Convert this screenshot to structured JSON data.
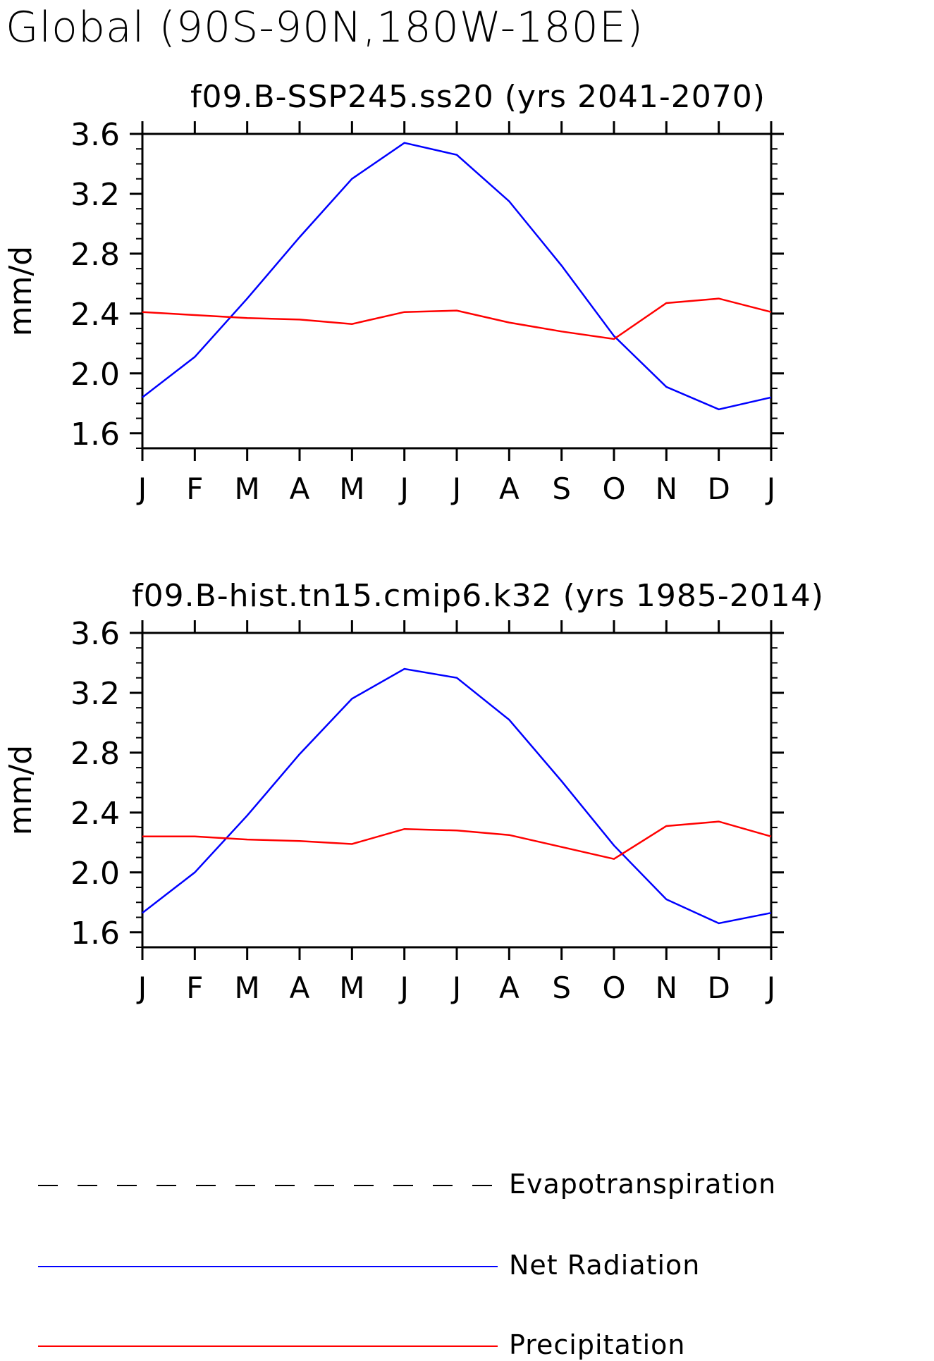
{
  "title": "Global (90S-90N,180W-180E)",
  "chart_data": [
    {
      "type": "line",
      "title": "f09.B-SSP245.ss20 (yrs 2041-2070)",
      "xlabel": "",
      "ylabel": "mm/d",
      "categories": [
        "J",
        "F",
        "M",
        "A",
        "M",
        "J",
        "J",
        "A",
        "S",
        "O",
        "N",
        "D",
        "J"
      ],
      "ylim": [
        1.5,
        3.6
      ],
      "yticks": [
        "1.6",
        "2.0",
        "2.4",
        "2.8",
        "3.2",
        "3.6"
      ],
      "series": [
        {
          "name": "Net Radiation",
          "color": "#0000ff",
          "values": [
            1.84,
            2.11,
            2.5,
            2.91,
            3.3,
            3.54,
            3.46,
            3.15,
            2.72,
            2.25,
            1.91,
            1.76,
            1.84
          ]
        },
        {
          "name": "Precipitation",
          "color": "#ff0000",
          "values": [
            2.41,
            2.39,
            2.37,
            2.36,
            2.33,
            2.41,
            2.42,
            2.34,
            2.28,
            2.23,
            2.47,
            2.5,
            2.41
          ]
        }
      ]
    },
    {
      "type": "line",
      "title": "f09.B-hist.tn15.cmip6.k32 (yrs 1985-2014)",
      "xlabel": "",
      "ylabel": "mm/d",
      "categories": [
        "J",
        "F",
        "M",
        "A",
        "M",
        "J",
        "J",
        "A",
        "S",
        "O",
        "N",
        "D",
        "J"
      ],
      "ylim": [
        1.5,
        3.6
      ],
      "yticks": [
        "1.6",
        "2.0",
        "2.4",
        "2.8",
        "3.2",
        "3.6"
      ],
      "series": [
        {
          "name": "Net Radiation",
          "color": "#0000ff",
          "values": [
            1.73,
            2.0,
            2.38,
            2.79,
            3.16,
            3.36,
            3.3,
            3.02,
            2.61,
            2.18,
            1.82,
            1.66,
            1.73
          ]
        },
        {
          "name": "Precipitation",
          "color": "#ff0000",
          "values": [
            2.24,
            2.24,
            2.22,
            2.21,
            2.19,
            2.29,
            2.28,
            2.25,
            2.17,
            2.09,
            2.31,
            2.34,
            2.24
          ]
        }
      ]
    }
  ],
  "legend": {
    "placement": "bottom",
    "items": [
      {
        "label": "Evapotranspiration",
        "color": "#000000",
        "style": "dashed"
      },
      {
        "label": "Net Radiation",
        "color": "#0000ff",
        "style": "solid"
      },
      {
        "label": "Precipitation",
        "color": "#ff0000",
        "style": "solid"
      }
    ]
  }
}
